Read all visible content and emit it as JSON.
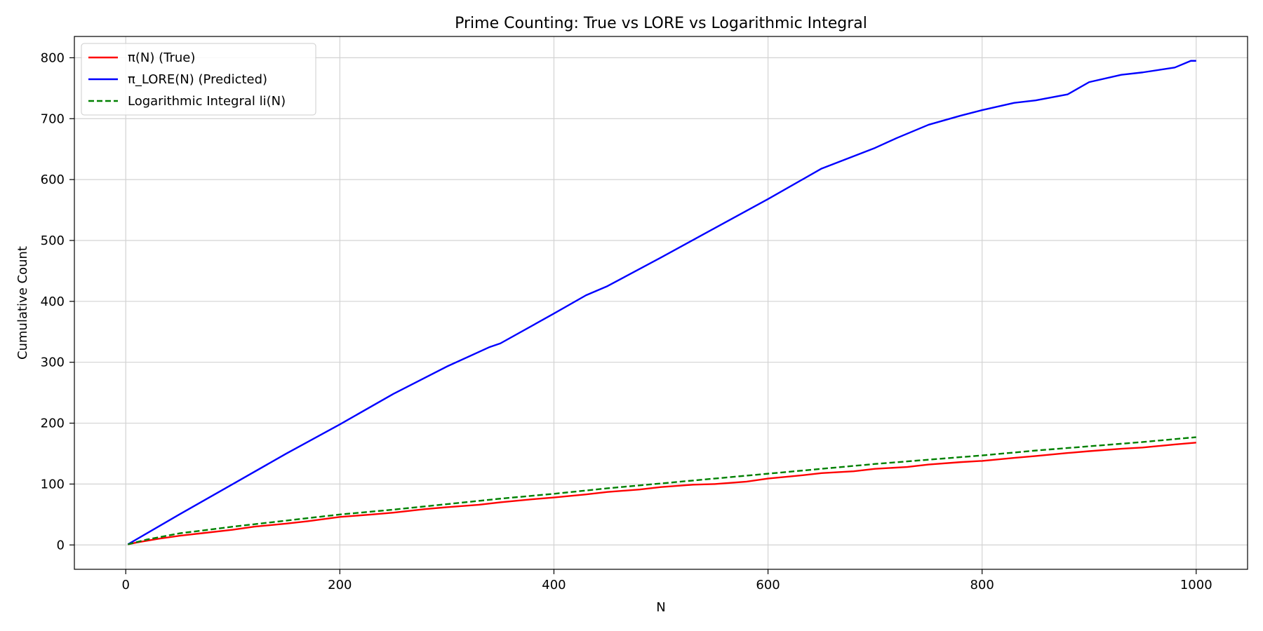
{
  "chart_data": {
    "type": "line",
    "title": "Prime Counting: True vs LORE vs Logarithmic Integral",
    "xlabel": "N",
    "ylabel": "Cumulative Count",
    "xlim": [
      -48,
      1048
    ],
    "ylim": [
      -40,
      835
    ],
    "x_ticks": [
      0,
      200,
      400,
      600,
      800,
      1000
    ],
    "y_ticks": [
      0,
      100,
      200,
      300,
      400,
      500,
      600,
      700,
      800
    ],
    "grid": true,
    "legend_position": "top-left",
    "series": [
      {
        "name": "π(N) (True)",
        "color": "#ff0000",
        "style": "solid",
        "x": [
          2,
          10,
          30,
          50,
          70,
          100,
          120,
          150,
          170,
          200,
          230,
          250,
          280,
          300,
          330,
          350,
          380,
          400,
          430,
          450,
          480,
          500,
          530,
          550,
          580,
          600,
          630,
          650,
          680,
          700,
          730,
          750,
          780,
          800,
          830,
          850,
          880,
          900,
          930,
          950,
          980,
          1000
        ],
        "y": [
          1,
          4,
          10,
          15,
          19,
          25,
          30,
          35,
          39,
          46,
          50,
          53,
          59,
          62,
          66,
          70,
          75,
          78,
          83,
          87,
          91,
          95,
          99,
          100,
          104,
          109,
          114,
          118,
          121,
          125,
          128,
          132,
          136,
          138,
          143,
          146,
          151,
          154,
          158,
          160,
          165,
          168
        ]
      },
      {
        "name": "π_LORE(N) (Predicted)",
        "color": "#0000ff",
        "style": "solid",
        "x": [
          2,
          50,
          100,
          150,
          200,
          250,
          300,
          340,
          350,
          400,
          430,
          450,
          500,
          550,
          600,
          650,
          700,
          720,
          750,
          780,
          800,
          830,
          850,
          880,
          900,
          930,
          950,
          980,
          995,
          1000
        ],
        "y": [
          1,
          50,
          100,
          150,
          198,
          248,
          293,
          325,
          331,
          380,
          410,
          425,
          472,
          520,
          568,
          618,
          652,
          668,
          690,
          705,
          714,
          726,
          730,
          740,
          760,
          772,
          776,
          784,
          795,
          795
        ]
      },
      {
        "name": "Logarithmic Integral li(N)",
        "color": "#008000",
        "style": "dashed",
        "x": [
          2,
          20,
          50,
          100,
          150,
          200,
          250,
          300,
          350,
          400,
          450,
          500,
          550,
          600,
          650,
          700,
          750,
          800,
          850,
          900,
          950,
          1000
        ],
        "y": [
          1,
          9,
          19,
          30,
          40,
          50,
          58,
          67,
          76,
          84,
          93,
          101,
          109,
          117,
          125,
          133,
          140,
          147,
          155,
          162,
          169,
          177
        ]
      }
    ]
  }
}
